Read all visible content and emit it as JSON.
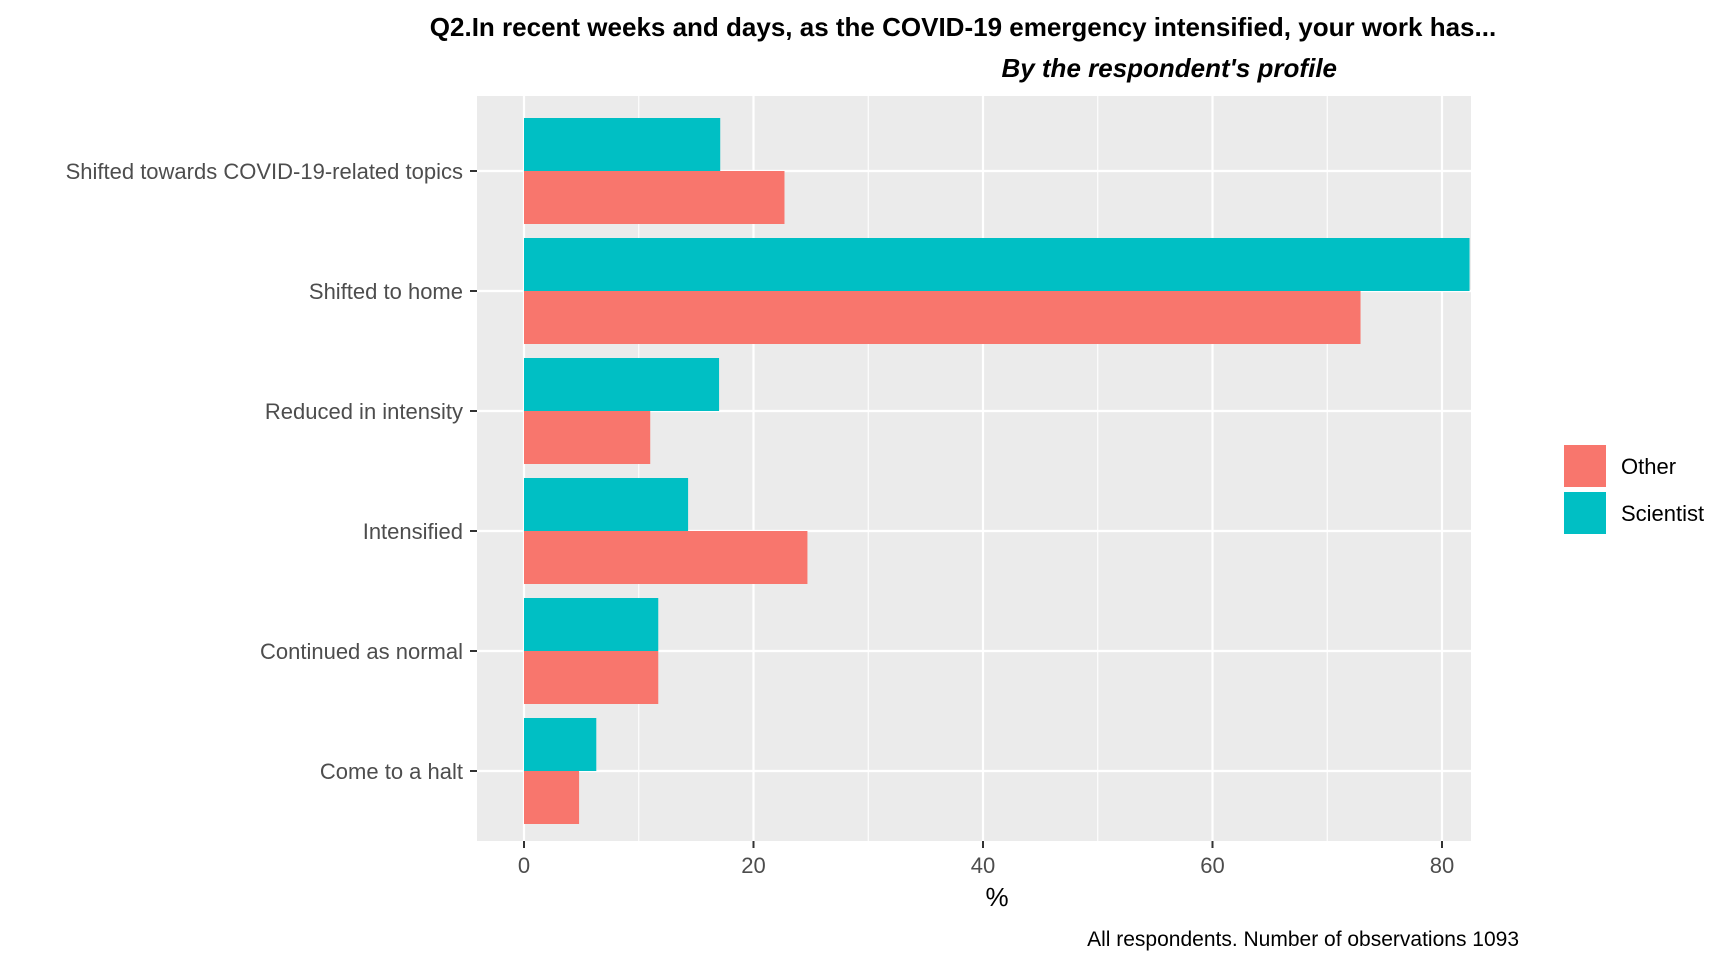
{
  "chart_data": {
    "type": "bar",
    "orientation": "horizontal",
    "title": "Q2.In recent weeks and days, as the COVID-19 emergency intensified, your work has...",
    "subtitle": "By the respondent's profile",
    "xlabel": "%",
    "ylabel": "",
    "caption": "All respondents. Number of observations 1093",
    "categories": [
      "Shifted towards COVID-19-related topics",
      "Shifted to home",
      "Reduced in intensity",
      "Intensified",
      "Continued as normal",
      "Come to a halt"
    ],
    "series": [
      {
        "name": "Scientist",
        "color": "#00BFC4",
        "values": [
          17.1,
          82.4,
          17.0,
          14.3,
          11.7,
          6.3
        ]
      },
      {
        "name": "Other",
        "color": "#F8766D",
        "values": [
          22.7,
          72.9,
          11.0,
          24.7,
          11.7,
          4.8
        ]
      }
    ],
    "xlim": [
      -4,
      86
    ],
    "xticks": [
      0,
      20,
      40,
      60,
      80
    ],
    "grid": true,
    "panel_background": "#EBEBEB",
    "legend": {
      "position": "right",
      "entries": [
        {
          "label": "Other",
          "color": "#F8766D"
        },
        {
          "label": "Scientist",
          "color": "#00BFC4"
        }
      ]
    }
  }
}
